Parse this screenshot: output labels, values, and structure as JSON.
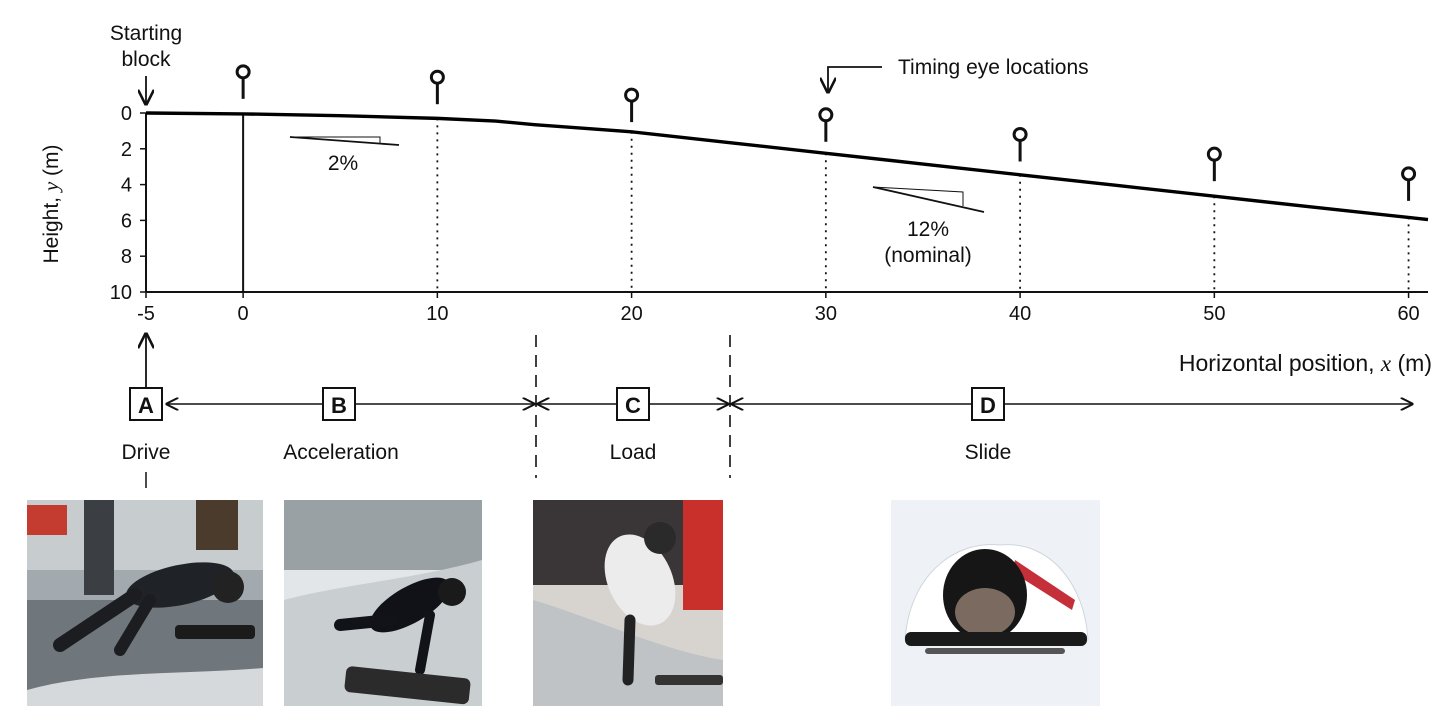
{
  "chart_data": {
    "type": "line",
    "xlabel_text": "Horizontal position, ",
    "xlabel_var": "x",
    "xlabel_unit": " (m)",
    "ylabel_text": "Height, ",
    "ylabel_var": "y",
    "ylabel_unit": " (m)",
    "x_ticks": [
      -5,
      0,
      10,
      20,
      30,
      40,
      50,
      60
    ],
    "y_ticks": [
      0,
      2,
      4,
      6,
      8,
      10
    ],
    "xlim": [
      -5,
      61
    ],
    "ylim": [
      0,
      10
    ],
    "y_inverted": true,
    "track_profile": [
      {
        "x": -5,
        "y": 0.0
      },
      {
        "x": 0,
        "y": 0.05
      },
      {
        "x": 5,
        "y": 0.15
      },
      {
        "x": 10,
        "y": 0.3
      },
      {
        "x": 13,
        "y": 0.45
      },
      {
        "x": 15,
        "y": 0.65
      },
      {
        "x": 20,
        "y": 1.05
      },
      {
        "x": 25,
        "y": 1.65
      },
      {
        "x": 30,
        "y": 2.25
      },
      {
        "x": 35,
        "y": 2.85
      },
      {
        "x": 40,
        "y": 3.45
      },
      {
        "x": 45,
        "y": 4.05
      },
      {
        "x": 50,
        "y": 4.65
      },
      {
        "x": 55,
        "y": 5.25
      },
      {
        "x": 61,
        "y": 5.95
      }
    ],
    "timing_eyes": [
      {
        "x": 0,
        "y": -2.3
      },
      {
        "x": 10,
        "y": -2.0
      },
      {
        "x": 20,
        "y": -1.0
      },
      {
        "x": 30,
        "y": 0.1
      },
      {
        "x": 40,
        "y": 1.2
      },
      {
        "x": 50,
        "y": 2.3
      },
      {
        "x": 60,
        "y": 3.4
      }
    ]
  },
  "annotations": {
    "starting_block": [
      "Starting",
      "block"
    ],
    "timing_eye_locations": "Timing eye locations",
    "slope_small": "2%",
    "slope_large": [
      "12%",
      "(nominal)"
    ]
  },
  "phases": [
    {
      "letter": "A",
      "name": "Drive"
    },
    {
      "letter": "B",
      "name": "Acceleration"
    },
    {
      "letter": "C",
      "name": "Load"
    },
    {
      "letter": "D",
      "name": "Slide"
    }
  ],
  "photos": [
    {
      "phase": "Drive",
      "background": "#9aa3a8",
      "suit": "#1d1d22",
      "sled": "#222"
    },
    {
      "phase": "Acceleration",
      "background": "#d9dde0",
      "suit": "#111318",
      "sled": "#2a2a2a"
    },
    {
      "phase": "Load",
      "background": "#c9302c",
      "suit": "#e8e8e8",
      "sled": "#333"
    },
    {
      "phase": "Slide",
      "background": "#e9eef3",
      "suit": "#ffffff",
      "sled": "#1a1a1a"
    }
  ]
}
